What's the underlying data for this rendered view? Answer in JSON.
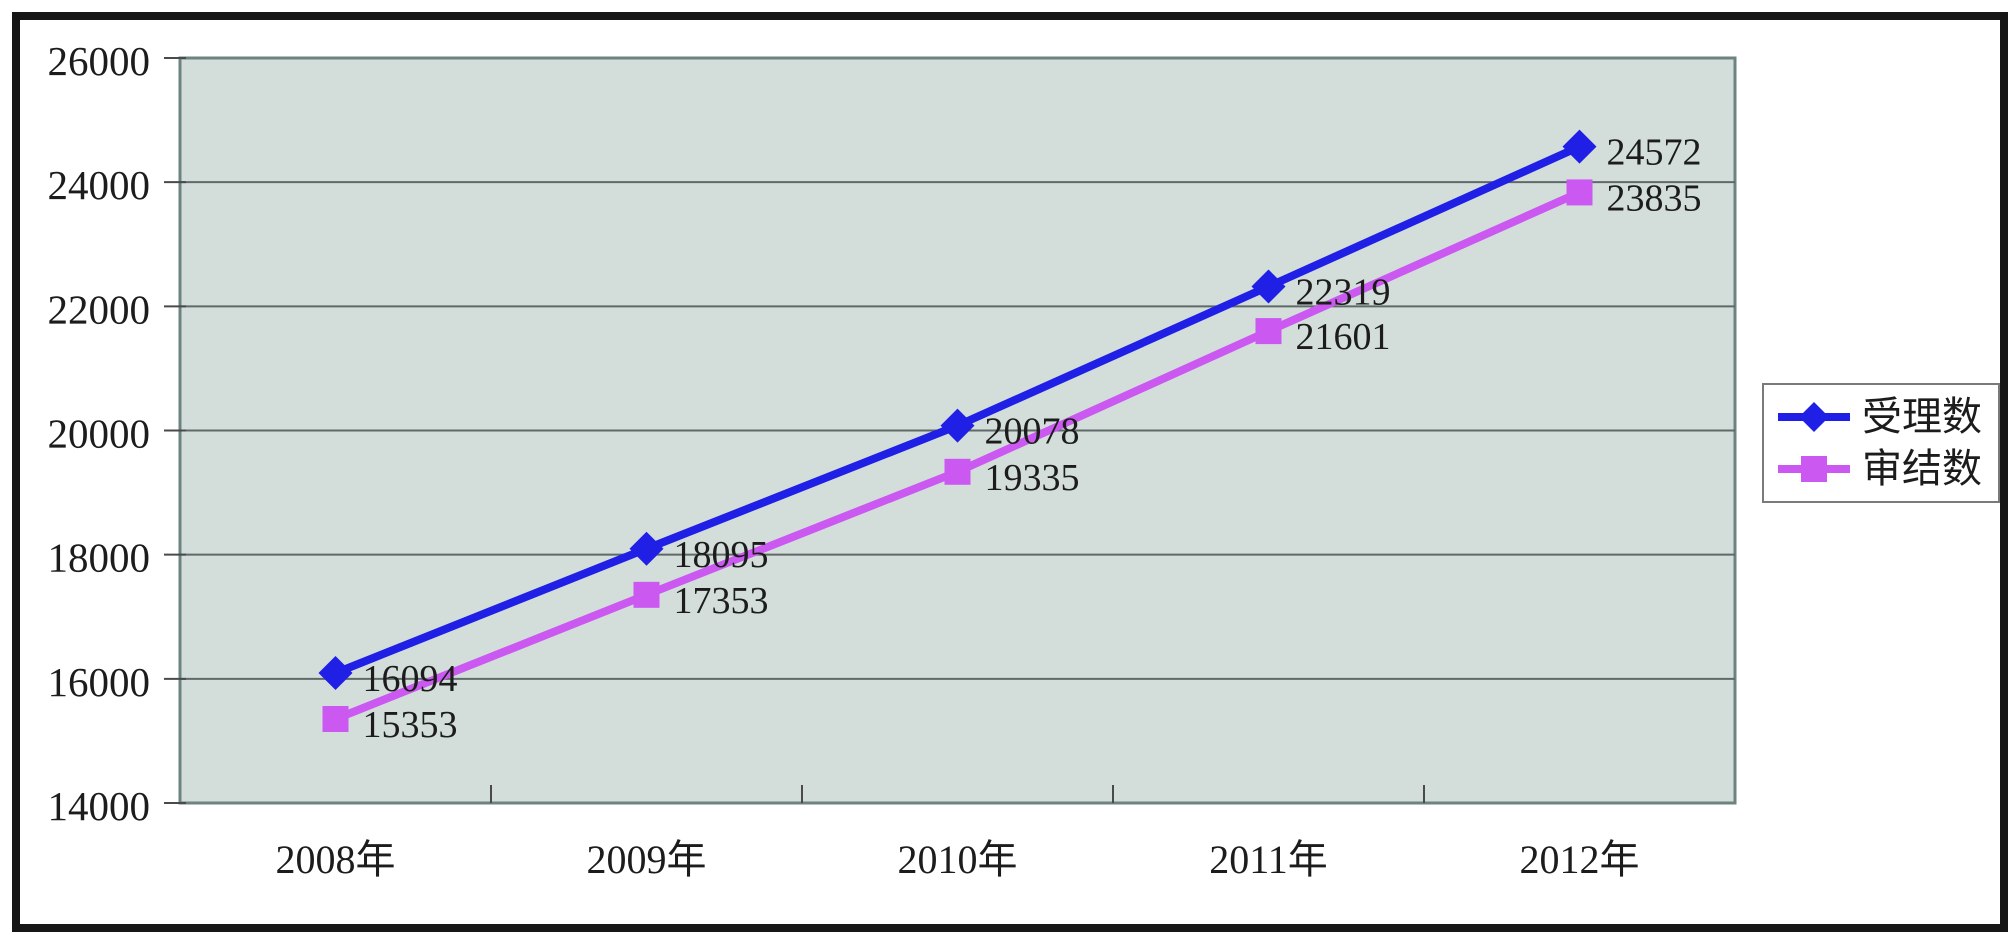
{
  "chart_data": {
    "type": "line",
    "title": "",
    "xlabel": "",
    "ylabel": "",
    "categories": [
      "2008年",
      "2009年",
      "2010年",
      "2011年",
      "2012年"
    ],
    "series": [
      {
        "name": "受理数",
        "values": [
          16094,
          18095,
          20078,
          22319,
          24572
        ],
        "color": "#1F1FE6",
        "marker": "diamond"
      },
      {
        "name": "审结数",
        "values": [
          15353,
          17353,
          19335,
          21601,
          23835
        ],
        "color": "#CB58F1",
        "marker": "square"
      }
    ],
    "ylim": [
      14000,
      26000
    ],
    "ytick_step": 2000,
    "ytick_labels": [
      "14000",
      "16000",
      "18000",
      "20000",
      "22000",
      "24000",
      "26000"
    ],
    "grid": true,
    "data_labels": true,
    "legend_position": "right",
    "colors": {
      "plot_bg": "#D3DEDB",
      "plot_border": "#6D837F",
      "gridline": "#5F6A68",
      "tick": "#4A4A4A",
      "text": "#1C1C1C",
      "legend_border": "#7A7A7A",
      "legend_bg": "#FFFFFF",
      "frame": "#161616",
      "page_bg": "#FFFFFF"
    }
  }
}
